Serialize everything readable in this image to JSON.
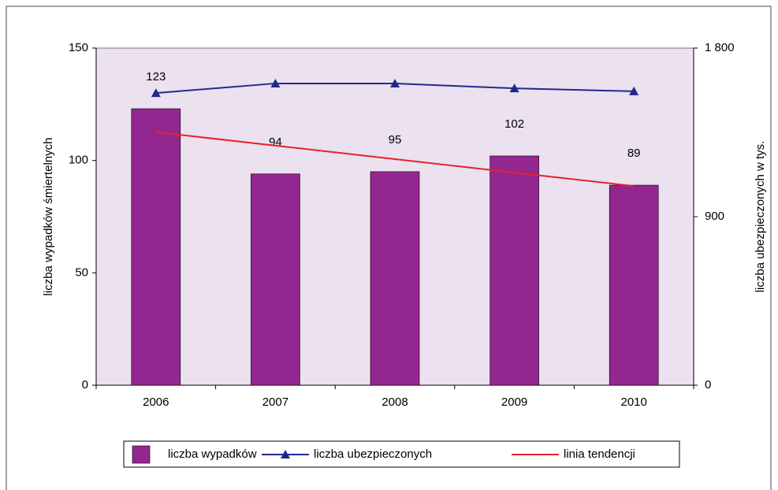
{
  "chart_data": {
    "type": "bar",
    "categories": [
      "2006",
      "2007",
      "2008",
      "2009",
      "2010"
    ],
    "series": [
      {
        "name": "liczba wypadków",
        "type": "bar",
        "color": "#93278f",
        "values": [
          123,
          94,
          95,
          102,
          89
        ]
      },
      {
        "name": "liczba ubezpieczonych",
        "type": "line",
        "axis": "y2",
        "color": "#1f2a8c",
        "values": [
          1560,
          1611,
          1611,
          1585,
          1569
        ]
      },
      {
        "name": "linia tendencji",
        "type": "line",
        "color": "#e8202a",
        "values": [
          112.6,
          106.6,
          100.6,
          94.6,
          88.6
        ]
      }
    ],
    "ylabel": "liczba wypadków  śmiertelnych",
    "y2label": "liczba ubezpieczonych w tys.",
    "ylim": [
      0,
      150
    ],
    "yticks": [
      0,
      50,
      100,
      150
    ],
    "y2lim": [
      0,
      1800
    ],
    "y2ticks": [
      0,
      900,
      {
        "value": 1800,
        "label": "1 800"
      }
    ],
    "background": "#ece1ee",
    "legend": "bottom"
  }
}
